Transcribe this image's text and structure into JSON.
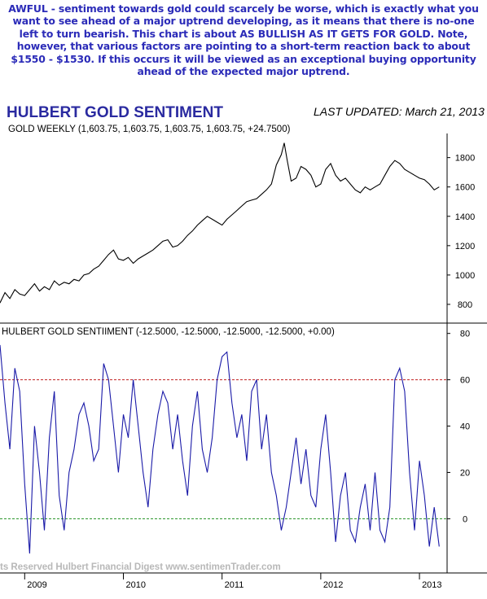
{
  "commentary": "AWFUL - sentiment towards gold could scarcely be worse, which is exactly what you want to see ahead of a major uptrend developing, as it means that there is no-one left to turn bearish. This chart is about AS BULLISH AS IT GETS FOR GOLD. Note, however, that various factors are pointing to a short-term reaction back to about $1550 - $1530. If this occurs it will be viewed as an exceptional buying opportunity ahead of the expected major uptrend.",
  "header": {
    "title": "HULBERT GOLD SENTIMENT",
    "updated": "LAST UPDATED:  March 21, 2013"
  },
  "colors": {
    "line": "#1a1aa8",
    "upper_ref": "#c02020",
    "lower_ref": "#209020",
    "axis": "#000000",
    "title": "#2a2aa0"
  },
  "chart_data": [
    {
      "type": "line",
      "title": "GOLD WEEKLY (1,603.75, 1,603.75, 1,603.75, 1,603.75, +24.7500)",
      "xlim": [
        2008.75,
        2013.28
      ],
      "ylim": [
        700,
        1920
      ],
      "yticks": [
        800,
        1000,
        1200,
        1400,
        1600,
        1800
      ],
      "x": [
        2008.75,
        2008.8,
        2008.85,
        2008.9,
        2008.95,
        2009.0,
        2009.05,
        2009.1,
        2009.15,
        2009.2,
        2009.25,
        2009.3,
        2009.35,
        2009.4,
        2009.45,
        2009.5,
        2009.55,
        2009.6,
        2009.65,
        2009.7,
        2009.75,
        2009.8,
        2009.85,
        2009.9,
        2009.95,
        2010.0,
        2010.05,
        2010.1,
        2010.15,
        2010.2,
        2010.25,
        2010.3,
        2010.35,
        2010.4,
        2010.45,
        2010.5,
        2010.55,
        2010.6,
        2010.65,
        2010.7,
        2010.75,
        2010.8,
        2010.85,
        2010.9,
        2010.95,
        2011.0,
        2011.05,
        2011.1,
        2011.15,
        2011.2,
        2011.25,
        2011.3,
        2011.35,
        2011.4,
        2011.45,
        2011.5,
        2011.55,
        2011.6,
        2011.63,
        2011.66,
        2011.7,
        2011.75,
        2011.8,
        2011.85,
        2011.9,
        2011.95,
        2012.0,
        2012.05,
        2012.1,
        2012.15,
        2012.2,
        2012.25,
        2012.3,
        2012.35,
        2012.4,
        2012.45,
        2012.5,
        2012.55,
        2012.6,
        2012.65,
        2012.7,
        2012.75,
        2012.8,
        2012.85,
        2012.9,
        2012.95,
        2013.0,
        2013.05,
        2013.1,
        2013.15,
        2013.2
      ],
      "series": [
        {
          "values": [
            810,
            880,
            840,
            900,
            870,
            860,
            900,
            940,
            890,
            920,
            900,
            960,
            930,
            950,
            940,
            970,
            960,
            1000,
            1010,
            1040,
            1060,
            1100,
            1140,
            1170,
            1110,
            1100,
            1120,
            1080,
            1110,
            1130,
            1150,
            1170,
            1200,
            1230,
            1240,
            1190,
            1200,
            1230,
            1270,
            1300,
            1340,
            1370,
            1400,
            1380,
            1360,
            1340,
            1380,
            1410,
            1440,
            1470,
            1500,
            1510,
            1520,
            1550,
            1580,
            1620,
            1750,
            1820,
            1900,
            1780,
            1640,
            1660,
            1740,
            1720,
            1680,
            1600,
            1620,
            1720,
            1760,
            1680,
            1640,
            1660,
            1620,
            1580,
            1560,
            1600,
            1580,
            1600,
            1620,
            1680,
            1740,
            1780,
            1760,
            1720,
            1700,
            1680,
            1660,
            1650,
            1620,
            1580,
            1600
          ]
        }
      ]
    },
    {
      "type": "line",
      "title": "HULBERT GOLD SENTIIMENT (-12.5000, -12.5000, -12.5000, -12.5000, +0.00)",
      "xlim": [
        2008.75,
        2013.28
      ],
      "ylim": [
        -22,
        82
      ],
      "yticks": [
        0,
        20,
        40,
        60,
        80
      ],
      "x_tick_labels": [
        "2009",
        "2010",
        "2011",
        "2012",
        "2013"
      ],
      "x_ticks": [
        2009,
        2010,
        2011,
        2012,
        2013
      ],
      "reference_lines": [
        60,
        0
      ],
      "x": [
        2008.75,
        2008.8,
        2008.85,
        2008.9,
        2008.95,
        2009.0,
        2009.05,
        2009.1,
        2009.15,
        2009.2,
        2009.25,
        2009.3,
        2009.35,
        2009.4,
        2009.45,
        2009.5,
        2009.55,
        2009.6,
        2009.65,
        2009.7,
        2009.75,
        2009.8,
        2009.85,
        2009.9,
        2009.95,
        2010.0,
        2010.05,
        2010.1,
        2010.15,
        2010.2,
        2010.25,
        2010.3,
        2010.35,
        2010.4,
        2010.45,
        2010.5,
        2010.55,
        2010.6,
        2010.65,
        2010.7,
        2010.75,
        2010.8,
        2010.85,
        2010.9,
        2010.95,
        2011.0,
        2011.05,
        2011.1,
        2011.15,
        2011.2,
        2011.25,
        2011.3,
        2011.35,
        2011.4,
        2011.45,
        2011.5,
        2011.55,
        2011.6,
        2011.65,
        2011.7,
        2011.75,
        2011.8,
        2011.85,
        2011.9,
        2011.95,
        2012.0,
        2012.05,
        2012.1,
        2012.15,
        2012.2,
        2012.25,
        2012.3,
        2012.35,
        2012.4,
        2012.45,
        2012.5,
        2012.55,
        2012.6,
        2012.65,
        2012.7,
        2012.75,
        2012.8,
        2012.85,
        2012.9,
        2012.95,
        2013.0,
        2013.05,
        2013.1,
        2013.15,
        2013.2
      ],
      "series": [
        {
          "values": [
            75,
            50,
            30,
            65,
            55,
            15,
            -15,
            40,
            20,
            -5,
            35,
            55,
            10,
            -5,
            20,
            30,
            45,
            50,
            40,
            25,
            30,
            67,
            60,
            40,
            20,
            45,
            35,
            60,
            40,
            20,
            5,
            30,
            45,
            55,
            50,
            30,
            45,
            25,
            10,
            40,
            55,
            30,
            20,
            35,
            60,
            70,
            72,
            50,
            35,
            45,
            25,
            55,
            60,
            30,
            45,
            20,
            10,
            -5,
            5,
            20,
            35,
            15,
            30,
            10,
            5,
            30,
            45,
            20,
            -10,
            10,
            20,
            -5,
            -10,
            5,
            15,
            -5,
            20,
            -5,
            -10,
            5,
            60,
            65,
            55,
            20,
            -5,
            25,
            10,
            -12,
            5,
            -12
          ]
        }
      ]
    }
  ],
  "footer": {
    "copyright": "ts Reserved  Hulbert Financial Digest  www.sentimenTrader.com"
  }
}
